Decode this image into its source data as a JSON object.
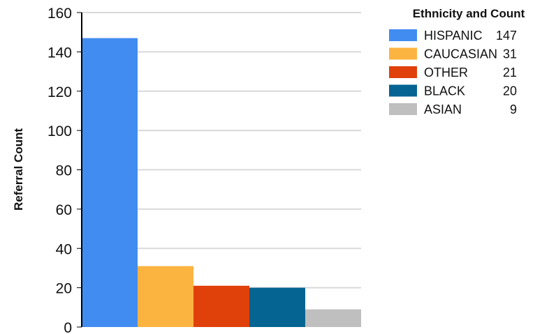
{
  "chart_data": {
    "type": "bar",
    "categories": [
      "HISPANIC",
      "CAUCASIAN",
      "OTHER",
      "BLACK",
      "ASIAN"
    ],
    "values": [
      147,
      31,
      21,
      20,
      9
    ],
    "colors": [
      "#418cf0",
      "#fcb441",
      "#e0400a",
      "#056492",
      "#bfbfbf"
    ],
    "title": "",
    "xlabel": "",
    "ylabel": "Referral Count",
    "ylim": [
      0,
      160
    ],
    "yticks": [
      0,
      20,
      40,
      60,
      80,
      100,
      120,
      140,
      160
    ],
    "grid": true,
    "legend": {
      "title": "Ethnicity and Count",
      "placement": "right",
      "entries": [
        {
          "name": "HISPANIC",
          "count": "147"
        },
        {
          "name": "CAUCASIAN",
          "count": "31"
        },
        {
          "name": "OTHER",
          "count": "21"
        },
        {
          "name": "BLACK",
          "count": "20"
        },
        {
          "name": "ASIAN",
          "count": "9"
        }
      ]
    },
    "gridline_color": "#d9d9d9",
    "axis_color": "#000000"
  }
}
